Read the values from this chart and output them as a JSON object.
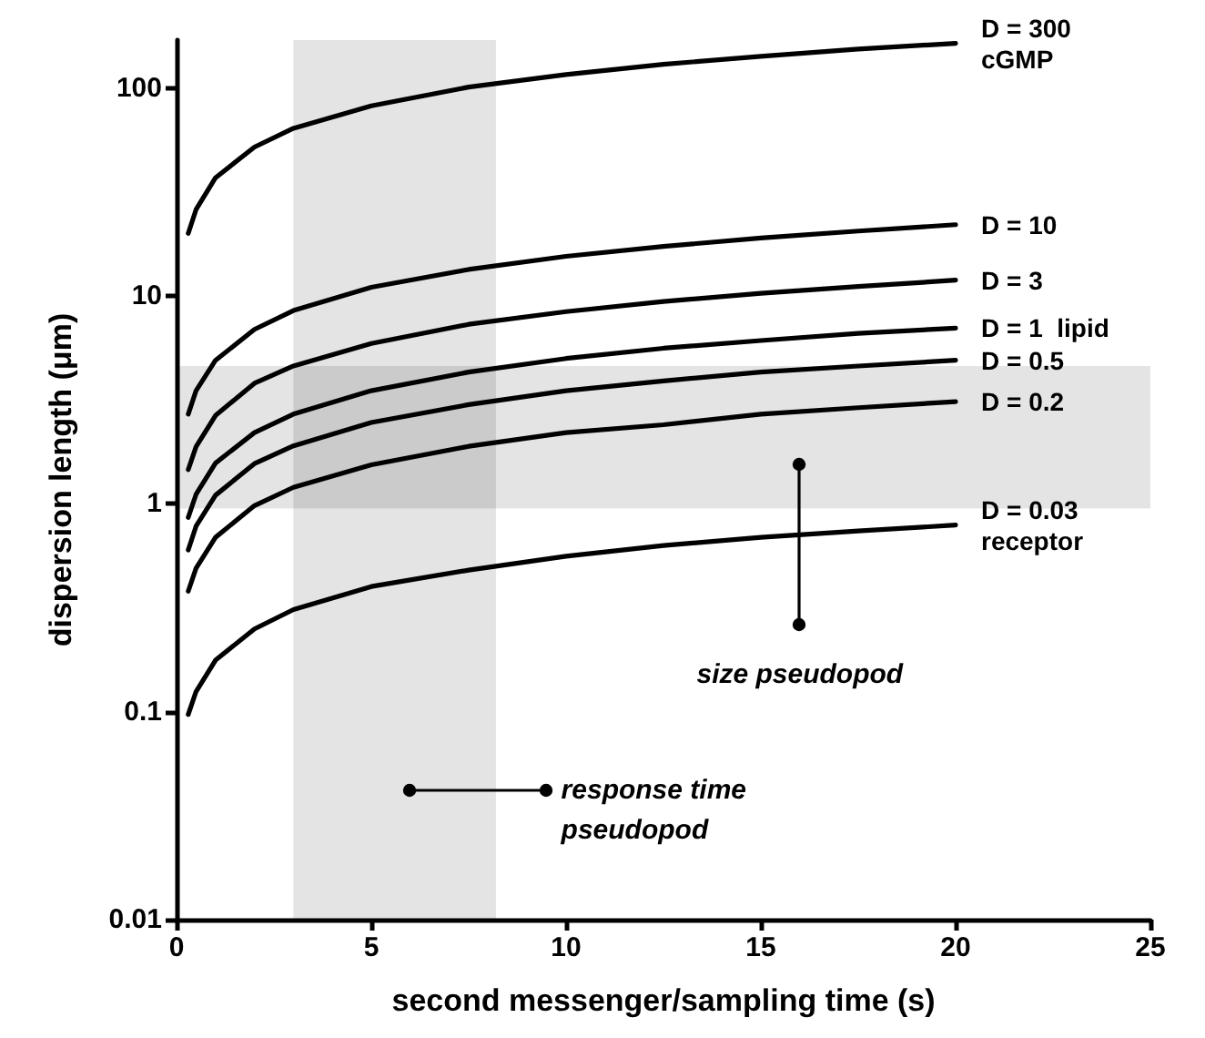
{
  "chart_data": {
    "type": "line",
    "xlabel": "second messenger/sampling time (s)",
    "ylabel": "dispersion length (μm)",
    "x": [
      0.3,
      0.5,
      1,
      2,
      3,
      5,
      7.5,
      10,
      12.5,
      15,
      17.5,
      20
    ],
    "series": [
      {
        "name": "D = 300\ncGMP",
        "color": "#000000",
        "values": [
          20,
          26,
          37,
          52,
          64,
          82,
          101,
          116,
          130,
          142,
          154,
          164
        ]
      },
      {
        "name": "D = 10",
        "color": "#000000",
        "values": [
          2.7,
          3.5,
          4.9,
          6.9,
          8.5,
          11,
          13.4,
          15.5,
          17.3,
          19,
          20.5,
          22
        ]
      },
      {
        "name": "D = 3",
        "color": "#000000",
        "values": [
          1.46,
          1.88,
          2.66,
          3.8,
          4.6,
          5.9,
          7.3,
          8.4,
          9.4,
          10.3,
          11.1,
          11.9
        ]
      },
      {
        "name": "D = 1  lipid",
        "color": "#000000",
        "values": [
          0.86,
          1.11,
          1.57,
          2.2,
          2.7,
          3.5,
          4.3,
          5.0,
          5.6,
          6.1,
          6.6,
          7.0
        ]
      },
      {
        "name": "D = 0.5",
        "color": "#000000",
        "values": [
          0.6,
          0.78,
          1.1,
          1.56,
          1.9,
          2.46,
          3.0,
          3.5,
          3.9,
          4.3,
          4.6,
          4.9
        ]
      },
      {
        "name": "D = 0.2",
        "color": "#000000",
        "values": [
          0.38,
          0.49,
          0.69,
          0.98,
          1.2,
          1.54,
          1.89,
          2.2,
          2.4,
          2.7,
          2.9,
          3.1
        ]
      },
      {
        "name": "D = 0.03\nreceptor",
        "color": "#000000",
        "values": [
          0.097,
          0.125,
          0.177,
          0.25,
          0.31,
          0.4,
          0.48,
          0.56,
          0.63,
          0.69,
          0.74,
          0.79
        ]
      }
    ],
    "xlim": [
      0,
      25
    ],
    "xticks": [
      0,
      5,
      10,
      15,
      20,
      25
    ],
    "ylim": [
      0.01,
      170
    ],
    "yticks": [
      0.01,
      0.1,
      1,
      10,
      100
    ],
    "log": "y",
    "grid": false,
    "legend": false,
    "marker": "none",
    "line_style": "solid",
    "bands": [
      {
        "axis": "x",
        "from": 3,
        "to": 8.2
      },
      {
        "axis": "y",
        "from": 0.95,
        "to": 4.6
      }
    ],
    "annotations": [
      {
        "text": "size pseudopod",
        "x": 16,
        "y": 0.26
      },
      {
        "text": "response time\npseudopod",
        "x": 9.5,
        "y": 0.042
      }
    ]
  }
}
